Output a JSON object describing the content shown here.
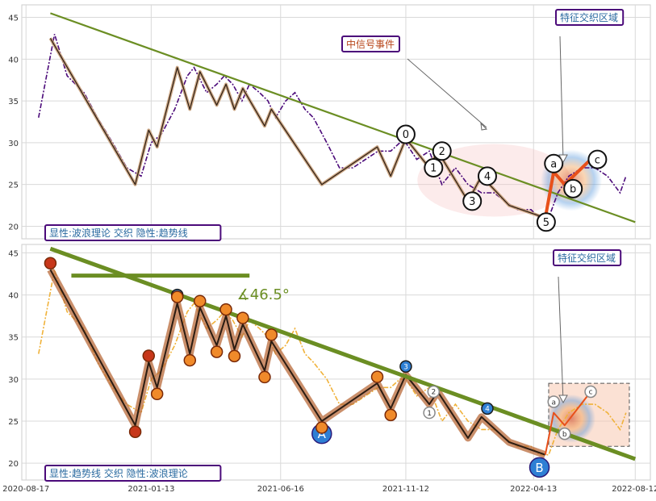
{
  "colors": {
    "price_top": "#4b0a7a",
    "price_bottom": "#f0b23a",
    "trendline": "#6b8e23",
    "wave_thin": "#2b1c12",
    "wave_shade": "#c8a07a",
    "impulse": "#e8501a",
    "label_border": "#4b0a7a",
    "label_text": "#2a6aa0",
    "event_text": "#b8461a",
    "grid": "#d9d9d9",
    "circle_blue": "#2e7fd4",
    "circle_orange": "#f08a2a",
    "circle_red": "#c7371a"
  },
  "x_ticks": [
    "2020-08-17",
    "2021-01-13",
    "2021-06-16",
    "2021-11-12",
    "2022-04-13",
    "2022-08-12"
  ],
  "chart_data": [
    {
      "type": "line",
      "panel": "top",
      "ylim": [
        18.5,
        46.5
      ],
      "yticks": [
        20,
        25,
        30,
        35,
        40,
        45
      ],
      "x": [
        "2020-09-01",
        "2020-09-20",
        "2020-10-05",
        "2020-10-25",
        "2020-11-10",
        "2020-11-28",
        "2020-12-15",
        "2021-01-01",
        "2021-01-13",
        "2021-01-25",
        "2021-02-10",
        "2021-02-25",
        "2021-03-05",
        "2021-03-20",
        "2021-04-01",
        "2021-04-10",
        "2021-04-20",
        "2021-05-01",
        "2021-05-10",
        "2021-05-22",
        "2021-06-01",
        "2021-06-10",
        "2021-06-22",
        "2021-07-03",
        "2021-07-15",
        "2021-07-25",
        "2021-08-10",
        "2021-08-25",
        "2021-09-10",
        "2021-09-25",
        "2021-10-10",
        "2021-10-25",
        "2021-11-05",
        "2021-11-12",
        "2021-11-25",
        "2021-12-10",
        "2021-12-25",
        "2022-01-10",
        "2022-01-25",
        "2022-02-10",
        "2022-02-25",
        "2022-03-10",
        "2022-03-25",
        "2022-04-10",
        "2022-04-20",
        "2022-05-01",
        "2022-05-12",
        "2022-05-25",
        "2022-06-10",
        "2022-06-25",
        "2022-07-10",
        "2022-07-25",
        "2022-08-01"
      ],
      "series": [
        {
          "values": [
            33,
            43,
            38,
            36,
            33,
            30,
            27,
            26,
            30,
            31,
            34,
            38,
            39,
            36,
            37,
            38,
            37,
            35,
            37,
            36,
            35,
            33,
            35,
            36,
            34,
            33,
            30,
            27,
            27,
            28,
            29,
            29,
            30,
            30,
            28,
            29,
            25,
            27,
            25,
            24,
            24,
            23,
            22,
            22,
            21,
            21,
            24,
            26,
            27,
            27,
            26,
            24,
            26
          ]
        }
      ],
      "wave_path": [
        [
          "2020-09-15",
          42.5
        ],
        [
          "2020-12-25",
          25
        ],
        [
          "2021-01-10",
          31.5
        ],
        [
          "2021-01-20",
          29.5
        ],
        [
          "2021-02-13",
          39
        ],
        [
          "2021-02-28",
          34
        ],
        [
          "2021-03-12",
          38.5
        ],
        [
          "2021-04-01",
          34.5
        ],
        [
          "2021-04-12",
          37
        ],
        [
          "2021-04-22",
          34
        ],
        [
          "2021-05-02",
          36.5
        ],
        [
          "2021-05-28",
          32
        ],
        [
          "2021-06-05",
          34
        ],
        [
          "2021-08-04",
          25
        ],
        [
          "2021-10-09",
          29.5
        ],
        [
          "2021-10-25",
          26
        ],
        [
          "2021-11-12",
          30.5
        ],
        [
          "2021-12-10",
          27
        ],
        [
          "2021-12-20",
          29
        ],
        [
          "2022-01-25",
          23
        ],
        [
          "2022-02-10",
          26
        ],
        [
          "2022-03-15",
          22.5
        ],
        [
          "2022-04-27",
          21
        ]
      ],
      "trendline": [
        [
          "2020-09-15",
          45.5
        ],
        [
          "2022-08-12",
          20.5
        ]
      ],
      "impulse": [
        [
          "2022-04-27",
          21
        ],
        [
          "2022-05-07",
          26.5
        ],
        [
          "2022-05-20",
          25
        ],
        [
          "2022-06-20",
          28
        ]
      ],
      "wave_labels": [
        {
          "text": "0",
          "x": "2021-11-12",
          "y": 31
        },
        {
          "text": "1",
          "x": "2021-12-15",
          "y": 27
        },
        {
          "text": "2",
          "x": "2021-12-25",
          "y": 29
        },
        {
          "text": "3",
          "x": "2022-01-30",
          "y": 23
        },
        {
          "text": "4",
          "x": "2022-02-17",
          "y": 26
        },
        {
          "text": "5",
          "x": "2022-04-28",
          "y": 20.5
        },
        {
          "text": "a",
          "x": "2022-05-07",
          "y": 27.5
        },
        {
          "text": "b",
          "x": "2022-05-30",
          "y": 24.5
        },
        {
          "text": "c",
          "x": "2022-06-28",
          "y": 28
        }
      ],
      "boxes": {
        "left": "显性:波浪理论 交织 隐性:趋势线",
        "event": "中信号事件",
        "zone": "特征交织区域"
      }
    },
    {
      "type": "line",
      "panel": "bottom",
      "ylim": [
        18,
        46
      ],
      "yticks": [
        20,
        25,
        30,
        35,
        40,
        45
      ],
      "x": [
        "2020-09-01",
        "2020-09-20",
        "2020-10-05",
        "2020-10-25",
        "2020-11-10",
        "2020-11-28",
        "2020-12-15",
        "2021-01-01",
        "2021-01-13",
        "2021-01-25",
        "2021-02-10",
        "2021-02-25",
        "2021-03-05",
        "2021-03-20",
        "2021-04-01",
        "2021-04-10",
        "2021-04-20",
        "2021-05-01",
        "2021-05-10",
        "2021-05-22",
        "2021-06-01",
        "2021-06-10",
        "2021-06-22",
        "2021-07-03",
        "2021-07-15",
        "2021-07-25",
        "2021-08-10",
        "2021-08-25",
        "2021-09-10",
        "2021-09-25",
        "2021-10-10",
        "2021-10-25",
        "2021-11-05",
        "2021-11-12",
        "2021-11-25",
        "2021-12-10",
        "2021-12-25",
        "2022-01-10",
        "2022-01-25",
        "2022-02-10",
        "2022-02-25",
        "2022-03-10",
        "2022-03-25",
        "2022-04-10",
        "2022-04-20",
        "2022-05-01",
        "2022-05-12",
        "2022-05-25",
        "2022-06-10",
        "2022-06-25",
        "2022-07-10",
        "2022-07-25",
        "2022-08-01"
      ],
      "series": [
        {
          "values": [
            33,
            43,
            38,
            36,
            32,
            29,
            27,
            26,
            30,
            31,
            34,
            38,
            39,
            36,
            37,
            38,
            37,
            35,
            37,
            36,
            35,
            33,
            34,
            36,
            33,
            32,
            30,
            27,
            27,
            28,
            29,
            29,
            30,
            30,
            28,
            29,
            25,
            27,
            25,
            24,
            24,
            23,
            22,
            22,
            21,
            21,
            24,
            26,
            27,
            27,
            26,
            24,
            26
          ]
        }
      ],
      "wave_path": [
        [
          "2020-09-15",
          43
        ],
        [
          "2020-12-25",
          24.5
        ],
        [
          "2021-01-10",
          32
        ],
        [
          "2021-01-20",
          29
        ],
        [
          "2021-02-13",
          39
        ],
        [
          "2021-02-28",
          33
        ],
        [
          "2021-03-12",
          38.5
        ],
        [
          "2021-04-01",
          34
        ],
        [
          "2021-04-12",
          37.5
        ],
        [
          "2021-04-22",
          33.5
        ],
        [
          "2021-05-02",
          36.5
        ],
        [
          "2021-05-28",
          31
        ],
        [
          "2021-06-05",
          34.5
        ],
        [
          "2021-08-04",
          25
        ],
        [
          "2021-10-09",
          29.5
        ],
        [
          "2021-10-25",
          26.5
        ],
        [
          "2021-11-12",
          30.5
        ],
        [
          "2021-12-10",
          27
        ],
        [
          "2021-12-20",
          28.5
        ],
        [
          "2022-01-25",
          23
        ],
        [
          "2022-02-10",
          25.5
        ],
        [
          "2022-03-15",
          22.5
        ],
        [
          "2022-04-27",
          21
        ]
      ],
      "trendline": [
        [
          "2020-09-15",
          45.5
        ],
        [
          "2022-08-12",
          20.5
        ]
      ],
      "angle_line": [
        [
          "2020-10-10",
          42.3
        ],
        [
          "2021-05-10",
          42.3
        ]
      ],
      "angle_label": "∡46.5°",
      "impulse": [
        [
          "2022-04-27",
          21
        ],
        [
          "2022-05-07",
          26
        ],
        [
          "2022-05-20",
          24.5
        ],
        [
          "2022-06-20",
          28.5
        ]
      ],
      "wave_labels": [
        {
          "text": "a",
          "x": "2022-05-07",
          "y": 27.3
        },
        {
          "text": "b",
          "x": "2022-05-20",
          "y": 23.5
        },
        {
          "text": "c",
          "x": "2022-06-20",
          "y": 28.5
        },
        {
          "text": "A",
          "x": "2021-08-04",
          "y": 23.5
        },
        {
          "text": "B",
          "x": "2022-04-20",
          "y": 19.5
        },
        {
          "text": "1",
          "x": "2021-02-13",
          "y": 40
        },
        {
          "text": "2",
          "x": "2021-12-15",
          "y": 28.5
        },
        {
          "text": "1",
          "x": "2021-12-10",
          "y": 26
        },
        {
          "text": "3",
          "x": "2021-11-12",
          "y": 31.5
        },
        {
          "text": "4",
          "x": "2022-02-17",
          "y": 26.5
        }
      ],
      "boxes": {
        "left": "显性:趋势线 交织 隐性:波浪理论",
        "zone": "特征交织区域"
      }
    }
  ]
}
